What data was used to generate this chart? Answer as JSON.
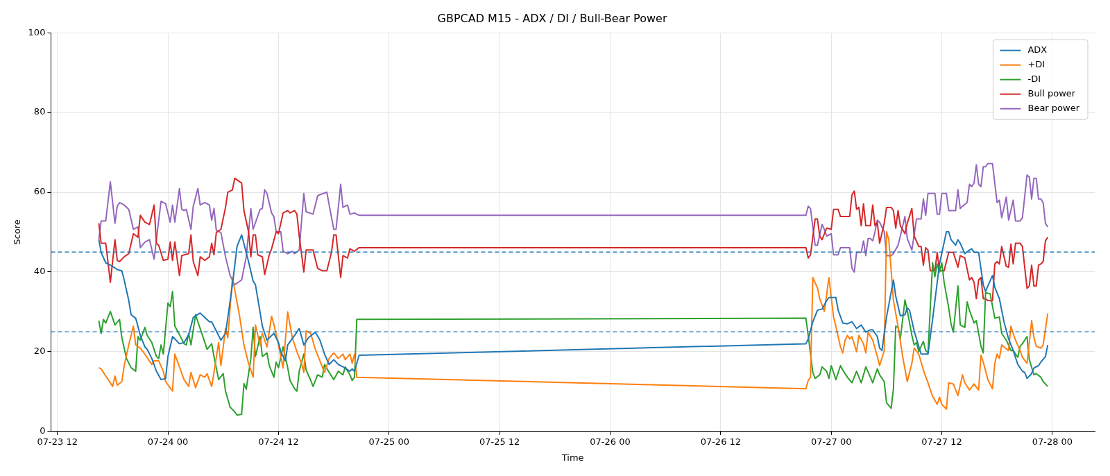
{
  "chart_data": {
    "type": "line",
    "title": "GBPCAD M15 - ADX / DI / Bull-Bear Power",
    "xlabel": "Time",
    "ylabel": "Score",
    "xlim": [
      "--07-23T11:18",
      "--07-28T04:36"
    ],
    "xticks": [
      {
        "value": "--07-23T12:00",
        "label": "07-23 12"
      },
      {
        "value": "--07-24T00:00",
        "label": "07-24 00"
      },
      {
        "value": "--07-24T12:00",
        "label": "07-24 12"
      },
      {
        "value": "--07-25T00:00",
        "label": "07-25 00"
      },
      {
        "value": "--07-25T12:00",
        "label": "07-25 12"
      },
      {
        "value": "--07-26T00:00",
        "label": "07-26 00"
      },
      {
        "value": "--07-26T12:00",
        "label": "07-26 12"
      },
      {
        "value": "--07-27T00:00",
        "label": "07-27 00"
      },
      {
        "value": "--07-27T12:00",
        "label": "07-27 12"
      },
      {
        "value": "--07-28T00:00",
        "label": "07-28 00"
      }
    ],
    "ylim": [
      0,
      100
    ],
    "yticks": [
      0,
      20,
      40,
      60,
      80,
      100
    ],
    "grid": true,
    "legend": "top right",
    "ref_lines": [
      {
        "axis": "y",
        "value": 45,
        "color": "#1f77b4",
        "line_style": "dashed"
      },
      {
        "axis": "y",
        "value": 25,
        "color": "#1f77b4",
        "line_style": "dashed"
      }
    ],
    "series": [
      {
        "name": "ADX",
        "color": "#1f77b4",
        "x": [
          "--07-23T16:30",
          "--07-23T16:45",
          "--07-23T17:15",
          "--07-23T17:45",
          "--07-23T18:00",
          "--07-23T18:30",
          "--07-23T19:00",
          "--07-23T19:15",
          "--07-23T19:45",
          "--07-23T20:00",
          "--07-23T20:30",
          "--07-23T21:00",
          "--07-23T21:30",
          "--07-23T21:45",
          "--07-23T22:15",
          "--07-23T22:45",
          "--07-23T23:15",
          "--07-23T23:45",
          "--07-24T00:00",
          "--07-24T00:30",
          "--07-24T01:15",
          "--07-24T01:45",
          "--07-24T02:15",
          "--07-24T02:45",
          "--07-24T03:30",
          "--07-24T04:00",
          "--07-24T04:30",
          "--07-24T04:45",
          "--07-24T05:15",
          "--07-24T05:45",
          "--07-24T06:15",
          "--07-24T06:30",
          "--07-24T07:00",
          "--07-24T07:30",
          "--07-24T08:00",
          "--07-24T08:45",
          "--07-24T09:15",
          "--07-24T09:30",
          "--07-24T10:00",
          "--07-24T10:15",
          "--07-24T10:45",
          "--07-24T11:00",
          "--07-24T11:30",
          "--07-24T12:00",
          "--07-24T12:15",
          "--07-24T12:45",
          "--07-24T13:00",
          "--07-24T13:45",
          "--07-24T14:15",
          "--07-24T14:45",
          "--07-24T15:15",
          "--07-24T16:00",
          "--07-24T16:30",
          "--07-24T17:00",
          "--07-24T17:30",
          "--07-24T18:00",
          "--07-24T18:30",
          "--07-24T19:00",
          "--07-24T19:45",
          "--07-24T20:00",
          "--07-24T20:15",
          "--07-24T20:45",
          "--07-26T21:15",
          "--07-26T21:30",
          "--07-26T22:00",
          "--07-26T22:30",
          "--07-26T23:00",
          "--07-26T23:30",
          "--07-26T23:45",
          "--07-27T00:30",
          "--07-27T00:45",
          "--07-27T01:15",
          "--07-27T01:45",
          "--07-27T02:15",
          "--07-27T02:45",
          "--07-27T03:15",
          "--07-27T03:45",
          "--07-27T04:15",
          "--07-27T04:30",
          "--07-27T05:00",
          "--07-27T05:15",
          "--07-27T05:30",
          "--07-27T06:00",
          "--07-27T06:45",
          "--07-27T07:00",
          "--07-27T07:30",
          "--07-27T08:00",
          "--07-27T08:15",
          "--07-27T08:30",
          "--07-27T09:00",
          "--07-27T09:45",
          "--07-27T10:30",
          "--07-27T11:00",
          "--07-27T11:45",
          "--07-27T12:30",
          "--07-27T12:45",
          "--07-27T13:00",
          "--07-27T13:30",
          "--07-27T13:45",
          "--07-27T14:00",
          "--07-27T14:30",
          "--07-27T15:00",
          "--07-27T15:15",
          "--07-27T15:30",
          "--07-27T16:00",
          "--07-27T16:30",
          "--07-27T16:45",
          "--07-27T17:00",
          "--07-27T17:30",
          "--07-27T17:45",
          "--07-27T18:15",
          "--07-27T18:45",
          "--07-27T19:15",
          "--07-27T19:45",
          "--07-27T20:15",
          "--07-27T20:45",
          "--07-27T21:00",
          "--07-27T21:15",
          "--07-27T21:45",
          "--07-27T22:00",
          "--07-27T22:30",
          "--07-27T22:45",
          "--07-27T23:15",
          "--07-27T23:30"
        ],
        "values": [
          48.1,
          44.9,
          42.3,
          41.7,
          41.4,
          40.6,
          40.3,
          38,
          32.8,
          29.3,
          28.4,
          24.1,
          21.2,
          20.6,
          18.3,
          15.1,
          13,
          13.3,
          18.8,
          23.8,
          22,
          22.3,
          24.3,
          28.6,
          29.7,
          28.6,
          27.5,
          27.5,
          25.2,
          22.9,
          24.6,
          28.6,
          36.8,
          46.4,
          49.3,
          42.6,
          37.7,
          36.8,
          29.9,
          26.4,
          22.9,
          23.5,
          24.6,
          22.3,
          20,
          17.7,
          21.7,
          24.1,
          25.8,
          21.7,
          23.5,
          24.9,
          22.9,
          19.4,
          16.8,
          18,
          16.8,
          16.2,
          15.1,
          15.7,
          15.1,
          19.1,
          22,
          23.2,
          27.5,
          30.4,
          30.7,
          32.8,
          33.6,
          33.6,
          30.4,
          27.2,
          27,
          27.5,
          25.8,
          26.7,
          24.9,
          25.5,
          25.5,
          23.8,
          20.9,
          20.3,
          28.7,
          38,
          33.9,
          29,
          29.3,
          31,
          30.4,
          25.2,
          19.4,
          19.4,
          28.1,
          42,
          50.1,
          50.1,
          48.1,
          46.7,
          48.1,
          47.2,
          44.6,
          45.5,
          45.8,
          44.9,
          44.9,
          36.8,
          35.1,
          36.5,
          39.1,
          36.2,
          33.3,
          27.5,
          23.2,
          20.3,
          16.8,
          15.1,
          14.8,
          13.3,
          14.5,
          15.9,
          16.5,
          17.4,
          18.8,
          21.7
        ]
      },
      {
        "name": "+DI",
        "color": "#ff7f0e",
        "x": [
          "--07-23T16:30",
          "--07-23T16:45",
          "--07-23T17:15",
          "--07-23T18:00",
          "--07-23T18:15",
          "--07-23T18:30",
          "--07-23T19:00",
          "--07-23T19:15",
          "--07-23T19:45",
          "--07-23T20:15",
          "--07-23T20:30",
          "--07-23T21:00",
          "--07-23T21:30",
          "--07-23T22:15",
          "--07-23T22:30",
          "--07-23T23:00",
          "--07-23T23:30",
          "--07-23T23:45",
          "--07-24T00:30",
          "--07-24T00:45",
          "--07-24T01:15",
          "--07-24T01:45",
          "--07-24T02:15",
          "--07-24T02:30",
          "--07-24T03:00",
          "--07-24T03:30",
          "--07-24T04:00",
          "--07-24T04:15",
          "--07-24T04:45",
          "--07-24T05:00",
          "--07-24T05:30",
          "--07-24T05:45",
          "--07-24T06:15",
          "--07-24T06:30",
          "--07-24T07:00",
          "--07-24T07:45",
          "--07-24T08:15",
          "--07-24T08:45",
          "--07-24T09:15",
          "--07-24T09:30",
          "--07-24T10:00",
          "--07-24T10:15",
          "--07-24T10:45",
          "--07-24T11:15",
          "--07-24T11:30",
          "--07-24T12:00",
          "--07-24T12:30",
          "--07-24T13:00",
          "--07-24T13:30",
          "--07-24T14:00",
          "--07-24T14:30",
          "--07-24T14:45",
          "--07-24T15:00",
          "--07-24T15:30",
          "--07-24T16:00",
          "--07-24T16:30",
          "--07-24T17:00",
          "--07-24T17:30",
          "--07-24T18:00",
          "--07-24T18:30",
          "--07-24T19:00",
          "--07-24T19:15",
          "--07-24T19:45",
          "--07-24T20:00",
          "--07-24T20:15",
          "--07-24T20:30",
          "--07-26T21:15",
          "--07-26T21:30",
          "--07-26T21:45",
          "--07-26T22:00",
          "--07-26T22:30",
          "--07-26T22:45",
          "--07-26T23:15",
          "--07-26T23:45",
          "--07-27T00:15",
          "--07-27T00:30",
          "--07-27T01:00",
          "--07-27T01:15",
          "--07-27T01:30",
          "--07-27T01:45",
          "--07-27T02:00",
          "--07-27T02:15",
          "--07-27T02:45",
          "--07-27T03:00",
          "--07-27T03:30",
          "--07-27T03:45",
          "--07-27T04:00",
          "--07-27T04:30",
          "--07-27T05:00",
          "--07-27T05:15",
          "--07-27T05:45",
          "--07-27T06:00",
          "--07-27T06:15",
          "--07-27T06:45",
          "--07-27T07:15",
          "--07-27T07:45",
          "--07-27T08:15",
          "--07-27T08:45",
          "--07-27T09:00",
          "--07-27T09:30",
          "--07-27T10:00",
          "--07-27T10:30",
          "--07-27T11:00",
          "--07-27T11:30",
          "--07-27T11:45",
          "--07-27T12:00",
          "--07-27T12:30",
          "--07-27T12:45",
          "--07-27T13:15",
          "--07-27T13:45",
          "--07-27T14:15",
          "--07-27T14:30",
          "--07-27T15:00",
          "--07-27T15:30",
          "--07-27T16:00",
          "--07-27T16:15",
          "--07-27T16:30",
          "--07-27T17:00",
          "--07-27T17:30",
          "--07-27T17:45",
          "--07-27T18:00",
          "--07-27T18:15",
          "--07-27T18:30",
          "--07-27T18:45",
          "--07-27T19:15",
          "--07-27T19:30",
          "--07-27T19:45",
          "--07-27T20:00",
          "--07-27T20:30",
          "--07-27T20:45",
          "--07-27T21:15",
          "--07-27T21:30",
          "--07-27T21:45",
          "--07-27T22:00",
          "--07-27T22:15",
          "--07-27T22:45",
          "--07-27T23:00",
          "--07-27T23:30"
        ],
        "values": [
          16,
          15.7,
          13.9,
          11.3,
          13.9,
          11.6,
          12.5,
          16.5,
          21.7,
          26.4,
          21.7,
          20.9,
          19.4,
          16.8,
          17.7,
          17.7,
          15.1,
          12.5,
          10.1,
          19.4,
          16.2,
          13,
          11.3,
          14.8,
          11,
          14.2,
          13.6,
          14.5,
          11.3,
          14.8,
          22.3,
          16.5,
          25.8,
          23.5,
          38.6,
          29.3,
          21.7,
          17.1,
          13.6,
          26.7,
          21.7,
          24.6,
          21.2,
          28.9,
          26.9,
          21.7,
          15.9,
          30,
          23.5,
          20,
          17.1,
          14.8,
          25.2,
          24.6,
          20.6,
          17.7,
          14.8,
          18.3,
          19.7,
          18.3,
          19.4,
          18,
          19.4,
          17.1,
          19.4,
          13.6,
          10.7,
          12.8,
          13.6,
          38.6,
          36,
          33.3,
          30.1,
          38.6,
          28.7,
          26.4,
          21.2,
          19.7,
          22.9,
          24.1,
          23.2,
          23.8,
          20,
          24.1,
          22,
          19.7,
          24.9,
          22.9,
          18.8,
          16.5,
          20.3,
          50.1,
          48.1,
          32.8,
          26.4,
          18.8,
          12.5,
          17.1,
          20.9,
          19.4,
          15.4,
          12.2,
          8.8,
          6.8,
          8.6,
          6.8,
          5.6,
          12.2,
          11.9,
          9,
          14.2,
          12.2,
          10.4,
          11.9,
          10.4,
          19.1,
          17.4,
          13,
          10.7,
          17.1,
          19.4,
          18.3,
          21.7,
          21.2,
          20.3,
          26.4,
          24.6,
          22.9,
          20.3,
          18.6,
          17.1,
          22.3,
          27.8,
          23.5,
          21.4,
          20.9,
          21.7,
          29.6
        ]
      },
      {
        "name": "-DI",
        "color": "#2ca02c",
        "x": [
          "--07-23T16:30",
          "--07-23T16:45",
          "--07-23T17:00",
          "--07-23T17:15",
          "--07-23T17:45",
          "--07-23T18:15",
          "--07-23T18:45",
          "--07-23T19:00",
          "--07-23T19:30",
          "--07-23T20:00",
          "--07-23T20:30",
          "--07-23T20:45",
          "--07-23T21:00",
          "--07-23T21:30",
          "--07-23T21:45",
          "--07-23T22:15",
          "--07-23T22:45",
          "--07-23T23:00",
          "--07-23T23:15",
          "--07-23T23:30",
          "--07-24T00:00",
          "--07-24T00:15",
          "--07-24T00:30",
          "--07-24T00:45",
          "--07-24T01:15",
          "--07-24T01:45",
          "--07-24T02:00",
          "--07-24T02:15",
          "--07-24T02:30",
          "--07-24T03:00",
          "--07-24T03:15",
          "--07-24T03:45",
          "--07-24T04:15",
          "--07-24T04:45",
          "--07-24T05:00",
          "--07-24T05:30",
          "--07-24T06:00",
          "--07-24T06:15",
          "--07-24T06:45",
          "--07-24T07:15",
          "--07-24T07:30",
          "--07-24T08:00",
          "--07-24T08:15",
          "--07-24T08:30",
          "--07-24T09:00",
          "--07-24T09:15",
          "--07-24T09:30",
          "--07-24T10:00",
          "--07-24T10:15",
          "--07-24T10:45",
          "--07-24T11:00",
          "--07-24T11:30",
          "--07-24T11:45",
          "--07-24T12:00",
          "--07-24T12:30",
          "--07-24T13:00",
          "--07-24T13:15",
          "--07-24T13:45",
          "--07-24T14:00",
          "--07-24T14:15",
          "--07-24T14:45",
          "--07-24T15:00",
          "--07-24T15:30",
          "--07-24T15:45",
          "--07-24T16:15",
          "--07-24T16:45",
          "--07-24T17:00",
          "--07-24T17:30",
          "--07-24T18:00",
          "--07-24T18:30",
          "--07-24T19:00",
          "--07-24T19:15",
          "--07-24T19:45",
          "--07-24T20:00",
          "--07-24T20:15",
          "--07-24T20:30",
          "--07-26T21:15",
          "--07-26T21:30",
          "--07-26T22:00",
          "--07-26T22:15",
          "--07-26T22:45",
          "--07-26T23:00",
          "--07-26T23:30",
          "--07-26T23:45",
          "--07-27T00:00",
          "--07-27T00:30",
          "--07-27T01:00",
          "--07-27T01:15",
          "--07-27T01:45",
          "--07-27T02:15",
          "--07-27T02:45",
          "--07-27T03:15",
          "--07-27T03:45",
          "--07-27T04:15",
          "--07-27T04:30",
          "--07-27T05:00",
          "--07-27T05:15",
          "--07-27T05:45",
          "--07-27T06:00",
          "--07-27T06:30",
          "--07-27T06:45",
          "--07-27T07:00",
          "--07-27T07:15",
          "--07-27T07:30",
          "--07-27T08:00",
          "--07-27T08:15",
          "--07-27T08:45",
          "--07-27T09:00",
          "--07-27T09:15",
          "--07-27T09:30",
          "--07-27T10:00",
          "--07-27T10:15",
          "--07-27T10:30",
          "--07-27T11:00",
          "--07-27T11:15",
          "--07-27T11:30",
          "--07-27T11:45",
          "--07-27T12:00",
          "--07-27T12:15",
          "--07-27T12:45",
          "--07-27T13:00",
          "--07-27T13:15",
          "--07-27T13:45",
          "--07-27T14:00",
          "--07-27T14:30",
          "--07-27T14:45",
          "--07-27T15:00",
          "--07-27T15:30",
          "--07-27T15:45",
          "--07-27T16:15",
          "--07-27T16:30",
          "--07-27T16:45",
          "--07-27T17:15",
          "--07-27T17:45",
          "--07-27T18:15",
          "--07-27T18:30",
          "--07-27T19:00",
          "--07-27T19:30",
          "--07-27T19:45",
          "--07-27T20:15",
          "--07-27T20:30",
          "--07-27T20:45",
          "--07-27T21:15",
          "--07-27T21:30",
          "--07-27T22:00",
          "--07-27T22:15",
          "--07-27T22:45",
          "--07-27T23:00",
          "--07-27T23:30"
        ],
        "values": [
          27.8,
          24.6,
          28.1,
          27.2,
          30.1,
          26.7,
          28.1,
          23.5,
          18.3,
          16,
          15.1,
          23.8,
          22.9,
          26.1,
          24.1,
          22.3,
          18.8,
          18.3,
          21.7,
          19.4,
          32.2,
          31.3,
          35.1,
          26.4,
          24.3,
          22,
          21.7,
          24.6,
          21.7,
          29.3,
          27.5,
          24.1,
          20.6,
          22,
          18.8,
          13,
          14.5,
          10.1,
          6.1,
          4.9,
          4.1,
          4.3,
          12,
          10.6,
          18.3,
          26.1,
          18.8,
          23.8,
          18.8,
          19.7,
          16.5,
          13.6,
          17.4,
          16,
          21.2,
          16,
          12.8,
          10.7,
          10.1,
          15.1,
          19.4,
          15.4,
          12.8,
          11.3,
          14.2,
          13.6,
          16.8,
          14.8,
          13,
          15.1,
          14.2,
          16.2,
          14.2,
          12.8,
          13.6,
          28.1,
          28.4,
          24.1,
          14.8,
          13.3,
          14.2,
          16.2,
          15.1,
          13.3,
          16.5,
          13,
          16.5,
          15.4,
          13.6,
          12.2,
          15.1,
          12.2,
          16.2,
          13.6,
          12.2,
          15.7,
          14.2,
          12.5,
          7.2,
          5.8,
          10.7,
          26.4,
          26.1,
          23.2,
          33,
          30.4,
          24.1,
          21.7,
          22.3,
          20,
          22.6,
          20.3,
          19.7,
          42.3,
          38.8,
          42,
          40,
          42.3,
          37.4,
          31,
          27,
          24.9,
          36.5,
          26.7,
          26.1,
          32.5,
          30.4,
          27.2,
          27.8,
          21.4,
          19.7,
          34.8,
          34.5,
          28.4,
          28.7,
          24.6,
          22.9,
          20.3,
          20.3,
          18.6,
          21.4,
          22,
          23.8,
          18,
          14.2,
          14.5,
          13.6,
          12.5,
          11.3
        ]
      },
      {
        "name": "Bull power",
        "color": "#d62728",
        "x": [
          "--07-23T16:30",
          "--07-23T16:45",
          "--07-23T17:15",
          "--07-23T17:45",
          "--07-23T18:15",
          "--07-23T18:30",
          "--07-23T18:45",
          "--07-23T19:15",
          "--07-23T19:45",
          "--07-23T20:15",
          "--07-23T20:45",
          "--07-23T21:00",
          "--07-23T21:30",
          "--07-23T22:00",
          "--07-23T22:30",
          "--07-23T22:45",
          "--07-23T23:00",
          "--07-23T23:30",
          "--07-24T00:00",
          "--07-24T00:15",
          "--07-24T00:30",
          "--07-24T00:45",
          "--07-24T01:15",
          "--07-24T01:30",
          "--07-24T02:15",
          "--07-24T02:30",
          "--07-24T02:45",
          "--07-24T03:15",
          "--07-24T03:30",
          "--07-24T04:00",
          "--07-24T04:30",
          "--07-24T04:45",
          "--07-24T05:00",
          "--07-24T05:15",
          "--07-24T05:45",
          "--07-24T06:15",
          "--07-24T06:30",
          "--07-24T07:00",
          "--07-24T07:15",
          "--07-24T08:00",
          "--07-24T08:15",
          "--07-24T08:45",
          "--07-24T09:00",
          "--07-24T09:15",
          "--07-24T09:30",
          "--07-24T09:45",
          "--07-24T10:15",
          "--07-24T10:30",
          "--07-24T11:00",
          "--07-24T11:15",
          "--07-24T11:45",
          "--07-24T12:00",
          "--07-24T12:30",
          "--07-24T13:00",
          "--07-24T13:15",
          "--07-24T13:45",
          "--07-24T14:00",
          "--07-24T14:15",
          "--07-24T14:45",
          "--07-24T15:00",
          "--07-24T15:45",
          "--07-24T16:15",
          "--07-24T16:45",
          "--07-24T17:15",
          "--07-24T17:45",
          "--07-24T18:00",
          "--07-24T18:15",
          "--07-24T18:45",
          "--07-24T19:00",
          "--07-24T19:30",
          "--07-24T19:45",
          "--07-24T20:15",
          "--07-24T20:45",
          "--07-26T21:15",
          "--07-26T21:30",
          "--07-26T21:45",
          "--07-26T22:15",
          "--07-26T22:30",
          "--07-26T22:45",
          "--07-26T23:00",
          "--07-26T23:30",
          "--07-27T00:00",
          "--07-27T00:15",
          "--07-27T00:45",
          "--07-27T01:00",
          "--07-27T02:00",
          "--07-27T02:15",
          "--07-27T02:30",
          "--07-27T02:45",
          "--07-27T03:00",
          "--07-27T03:15",
          "--07-27T03:30",
          "--07-27T03:45",
          "--07-27T04:15",
          "--07-27T04:30",
          "--07-27T04:45",
          "--07-27T05:00",
          "--07-27T05:15",
          "--07-27T05:45",
          "--07-27T06:00",
          "--07-27T06:30",
          "--07-27T06:45",
          "--07-27T07:00",
          "--07-27T07:15",
          "--07-27T07:30",
          "--07-27T08:00",
          "--07-27T08:15",
          "--07-27T08:45",
          "--07-27T09:00",
          "--07-27T09:30",
          "--07-27T09:45",
          "--07-27T10:00",
          "--07-27T10:15",
          "--07-27T10:30",
          "--07-27T10:45",
          "--07-27T11:15",
          "--07-27T11:30",
          "--07-27T11:45",
          "--07-27T12:15",
          "--07-27T12:45",
          "--07-27T13:15",
          "--07-27T13:45",
          "--07-27T14:00",
          "--07-27T14:30",
          "--07-27T15:00",
          "--07-27T15:15",
          "--07-27T15:30",
          "--07-27T15:45",
          "--07-27T16:00",
          "--07-27T16:15",
          "--07-27T16:30",
          "--07-27T16:45",
          "--07-27T17:00",
          "--07-27T17:30",
          "--07-27T17:45",
          "--07-27T18:00",
          "--07-27T18:15",
          "--07-27T18:30",
          "--07-27T19:00",
          "--07-27T19:15",
          "--07-27T19:30",
          "--07-27T19:45",
          "--07-27T20:00",
          "--07-27T20:30",
          "--07-27T20:45",
          "--07-27T21:15",
          "--07-27T21:30",
          "--07-27T21:45",
          "--07-27T22:00",
          "--07-27T22:15",
          "--07-27T22:30",
          "--07-27T22:45",
          "--07-27T23:00",
          "--07-27T23:15",
          "--07-27T23:30"
        ],
        "values": [
          52.2,
          47.2,
          47.2,
          37.4,
          48.1,
          42.9,
          42.6,
          43.8,
          44.6,
          49.6,
          48.7,
          54.2,
          52.5,
          51.9,
          56.8,
          47.2,
          46.7,
          42.9,
          43.2,
          47.5,
          42.9,
          47.5,
          39.1,
          44.1,
          44.6,
          49.3,
          42.6,
          39.1,
          43.8,
          42.9,
          43.8,
          47.2,
          44.3,
          49.9,
          50.7,
          56.2,
          60,
          60.6,
          63.5,
          62.3,
          55.4,
          50.1,
          43.8,
          49.3,
          49.3,
          44.3,
          43.8,
          39.4,
          44.3,
          45.8,
          50.1,
          49.6,
          54.8,
          55.4,
          54.8,
          55.4,
          54.5,
          49,
          40,
          45.5,
          45.5,
          40.9,
          40.3,
          40.3,
          44.9,
          49.3,
          49.3,
          38.6,
          44.1,
          43.5,
          45.8,
          45.2,
          46.1,
          46.1,
          43.5,
          44.3,
          53.3,
          53.3,
          49,
          48.1,
          51,
          50.7,
          55.7,
          55.7,
          53.9,
          53.9,
          59.4,
          60.3,
          55.7,
          56.2,
          51.6,
          57.1,
          51.6,
          51.6,
          56.8,
          51.6,
          52.5,
          47.2,
          52.2,
          56.2,
          56.2,
          55.4,
          51,
          55.4,
          51.6,
          49.6,
          52.2,
          55.9,
          49,
          46.4,
          46.4,
          41.7,
          46.1,
          45.5,
          40.3,
          40.3,
          44.9,
          40.3,
          40.3,
          44.9,
          44.9,
          41.2,
          44.1,
          43.5,
          38,
          38.6,
          37.4,
          33.3,
          38,
          38.6,
          33.3,
          33.3,
          32.8,
          32.8,
          42,
          42.6,
          42,
          46.4,
          41.4,
          41.2,
          47,
          42,
          47.2,
          47.2,
          46.4,
          35.9,
          36.5,
          41.7,
          36.5,
          36.5,
          41.7,
          42,
          42.6,
          47.8,
          48.7
        ]
      },
      {
        "name": "Bear power",
        "color": "#9467bd",
        "x": [
          "--07-23T16:30",
          "--07-23T16:45",
          "--07-23T17:15",
          "--07-23T17:45",
          "--07-23T18:15",
          "--07-23T18:30",
          "--07-23T18:45",
          "--07-23T19:15",
          "--07-23T19:45",
          "--07-23T20:15",
          "--07-23T20:45",
          "--07-23T21:00",
          "--07-23T21:30",
          "--07-23T22:00",
          "--07-23T22:30",
          "--07-23T23:00",
          "--07-23T23:15",
          "--07-23T23:45",
          "--07-24T00:15",
          "--07-24T00:30",
          "--07-24T00:45",
          "--07-24T01:15",
          "--07-24T01:30",
          "--07-24T01:45",
          "--07-24T02:00",
          "--07-24T02:30",
          "--07-24T02:45",
          "--07-24T03:15",
          "--07-24T03:30",
          "--07-24T04:00",
          "--07-24T04:30",
          "--07-24T04:45",
          "--07-24T05:00",
          "--07-24T05:15",
          "--07-24T05:45",
          "--07-24T06:15",
          "--07-24T06:45",
          "--07-24T07:15",
          "--07-24T08:00",
          "--07-24T08:30",
          "--07-24T09:00",
          "--07-24T09:15",
          "--07-24T10:00",
          "--07-24T10:15",
          "--07-24T10:30",
          "--07-24T10:45",
          "--07-24T11:15",
          "--07-24T11:30",
          "--07-24T11:45",
          "--07-24T12:15",
          "--07-24T12:30",
          "--07-24T13:00",
          "--07-24T13:30",
          "--07-24T13:45",
          "--07-24T14:15",
          "--07-24T14:45",
          "--07-24T15:00",
          "--07-24T15:45",
          "--07-24T16:15",
          "--07-24T16:30",
          "--07-24T17:15",
          "--07-24T17:30",
          "--07-24T18:00",
          "--07-24T18:15",
          "--07-24T18:45",
          "--07-24T19:00",
          "--07-24T19:30",
          "--07-24T19:45",
          "--07-24T20:15",
          "--07-24T20:45",
          "--07-26T21:15",
          "--07-26T21:30",
          "--07-26T21:45",
          "--07-26T22:15",
          "--07-26T22:30",
          "--07-26T23:00",
          "--07-26T23:15",
          "--07-26T23:30",
          "--07-27T00:00",
          "--07-27T00:15",
          "--07-27T00:45",
          "--07-27T01:00",
          "--07-27T02:00",
          "--07-27T02:15",
          "--07-27T02:30",
          "--07-27T02:45",
          "--07-27T03:15",
          "--07-27T03:30",
          "--07-27T03:45",
          "--07-27T04:00",
          "--07-27T04:15",
          "--07-27T04:30",
          "--07-27T04:45",
          "--07-27T05:00",
          "--07-27T05:15",
          "--07-27T05:45",
          "--07-27T06:00",
          "--07-27T06:30",
          "--07-27T06:45",
          "--07-27T07:15",
          "--07-27T07:30",
          "--07-27T08:00",
          "--07-27T08:15",
          "--07-27T08:45",
          "--07-27T09:15",
          "--07-27T09:45",
          "--07-27T10:00",
          "--07-27T10:15",
          "--07-27T10:30",
          "--07-27T11:15",
          "--07-27T11:30",
          "--07-27T11:45",
          "--07-27T12:00",
          "--07-27T12:30",
          "--07-27T12:45",
          "--07-27T13:30",
          "--07-27T13:45",
          "--07-27T14:00",
          "--07-27T14:15",
          "--07-27T14:45",
          "--07-27T15:00",
          "--07-27T15:15",
          "--07-27T15:30",
          "--07-27T15:45",
          "--07-27T16:00",
          "--07-27T16:15",
          "--07-27T16:30",
          "--07-27T16:45",
          "--07-27T17:00",
          "--07-27T17:30",
          "--07-27T18:00",
          "--07-27T18:15",
          "--07-27T18:30",
          "--07-27T19:00",
          "--07-27T19:15",
          "--07-27T19:45",
          "--07-27T20:00",
          "--07-27T20:30",
          "--07-27T20:45",
          "--07-27T21:15",
          "--07-27T21:30",
          "--07-27T21:45",
          "--07-27T22:00",
          "--07-27T22:15",
          "--07-27T22:30",
          "--07-27T22:45",
          "--07-27T23:00",
          "--07-27T23:15",
          "--07-27T23:30"
        ],
        "values": [
          48.1,
          52.8,
          52.8,
          62.6,
          52.2,
          56.5,
          57.4,
          56.8,
          55.7,
          50.7,
          51.3,
          46.1,
          47.5,
          48.1,
          43.2,
          53,
          57.7,
          57.1,
          52.5,
          56.8,
          52.5,
          60.9,
          55.7,
          55.4,
          55.7,
          50.7,
          56.5,
          60.9,
          56.8,
          57.4,
          56.8,
          53,
          55.9,
          50.4,
          49.9,
          43.8,
          39.1,
          36.8,
          38,
          43.8,
          55.9,
          50.7,
          55.7,
          55.9,
          60.6,
          59.7,
          54.8,
          53.9,
          50.1,
          50.1,
          45.2,
          44.6,
          45.2,
          44.6,
          45.5,
          59.7,
          55.1,
          54.5,
          59.1,
          59.4,
          60,
          56.8,
          50.7,
          50.7,
          62,
          56.2,
          56.8,
          54.5,
          54.8,
          54.2,
          54.2,
          56.5,
          55.9,
          46.7,
          46.7,
          51.9,
          50.7,
          49,
          49.6,
          44.3,
          44.3,
          46.1,
          46.1,
          40.9,
          40,
          44.9,
          44.9,
          47.8,
          44.1,
          48.4,
          48.4,
          47.8,
          50.1,
          53,
          52.5,
          50.1,
          44.1,
          44.1,
          44.6,
          46.7,
          49,
          53.9,
          48.4,
          45.5,
          53.3,
          53.3,
          58.3,
          54.2,
          59.7,
          59.7,
          54.5,
          54.5,
          59.7,
          59.7,
          55.4,
          55.4,
          60.6,
          55.9,
          56.5,
          57.4,
          62,
          61.4,
          62.3,
          66.9,
          62,
          61.4,
          66.4,
          66.4,
          67.2,
          67.2,
          57.4,
          58,
          53.6,
          58.8,
          53,
          58,
          52.8,
          52.8,
          53.6,
          64.3,
          63.8,
          58.3,
          63.5,
          63.5,
          58.3,
          58.3,
          57.4,
          52.2,
          51.3
        ]
      }
    ]
  }
}
